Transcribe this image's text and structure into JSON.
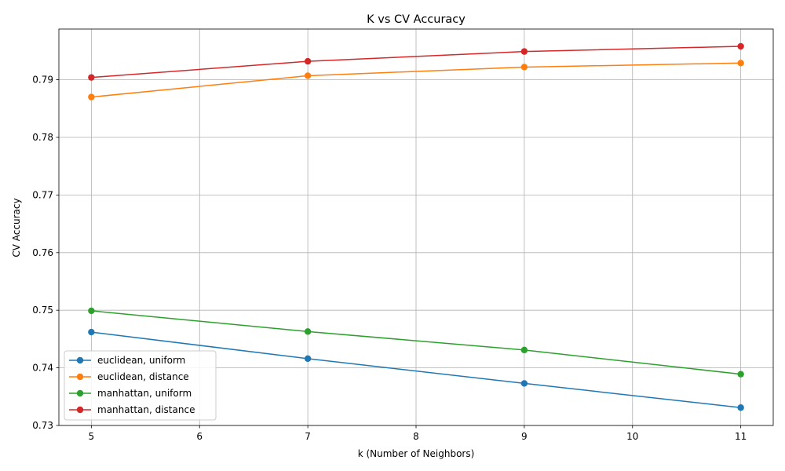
{
  "chart_data": {
    "type": "line",
    "title": "K vs CV Accuracy",
    "xlabel": "k (Number of Neighbors)",
    "ylabel": "CV Accuracy",
    "x": [
      5,
      7,
      9,
      11
    ],
    "xlim": [
      4.7,
      11.3
    ],
    "ylim": [
      0.73,
      0.7988
    ],
    "xticks": [
      5,
      6,
      7,
      8,
      9,
      10,
      11
    ],
    "yticks": [
      0.73,
      0.74,
      0.75,
      0.76,
      0.77,
      0.78,
      0.79
    ],
    "ytick_labels": [
      "0.73",
      "0.74",
      "0.75",
      "0.76",
      "0.77",
      "0.78",
      "0.79"
    ],
    "grid": true,
    "legend_position": "lower-left",
    "series": [
      {
        "name": "euclidean, uniform",
        "color": "#1f77b4",
        "values": [
          0.7462,
          0.7416,
          0.7373,
          0.7331
        ]
      },
      {
        "name": "euclidean, distance",
        "color": "#ff7f0e",
        "values": [
          0.787,
          0.7907,
          0.7922,
          0.7929
        ]
      },
      {
        "name": "manhattan, uniform",
        "color": "#2ca02c",
        "values": [
          0.7499,
          0.7463,
          0.7431,
          0.7389
        ]
      },
      {
        "name": "manhattan, distance",
        "color": "#d62728",
        "values": [
          0.7904,
          0.7932,
          0.7949,
          0.7958
        ]
      }
    ]
  }
}
